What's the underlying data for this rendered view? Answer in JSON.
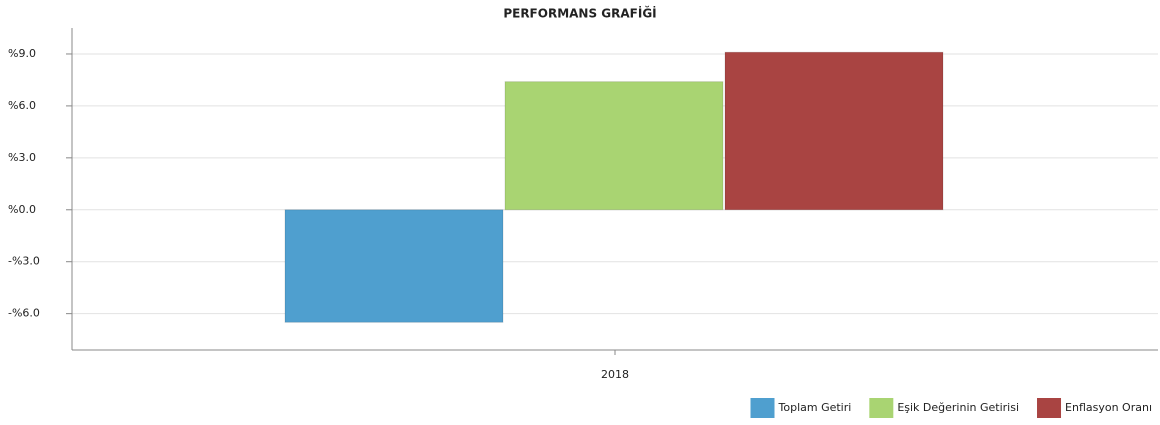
{
  "chart_data": {
    "type": "bar",
    "title": "PERFORMANS GRAFİĞİ",
    "categories": [
      "2018"
    ],
    "series": [
      {
        "name": "Toplam Getiri",
        "color": "#4f9fcf",
        "values": [
          -6.5
        ]
      },
      {
        "name": "Eşik Değerinin Getirisi",
        "color": "#a9d472",
        "values": [
          7.4
        ]
      },
      {
        "name": "Enflasyon Oranı",
        "color": "#a94442",
        "values": [
          9.1
        ]
      }
    ],
    "ylim": [
      -8.1,
      10.5
    ],
    "yticks": [
      {
        "value": -6,
        "label": "-%6.0"
      },
      {
        "value": -3,
        "label": "-%3.0"
      },
      {
        "value": 0,
        "label": "%0.0"
      },
      {
        "value": 3,
        "label": "%3.0"
      },
      {
        "value": 6,
        "label": "%6.0"
      },
      {
        "value": 9,
        "label": "%9.0"
      }
    ],
    "grid": true,
    "legend": "bottom-right"
  }
}
